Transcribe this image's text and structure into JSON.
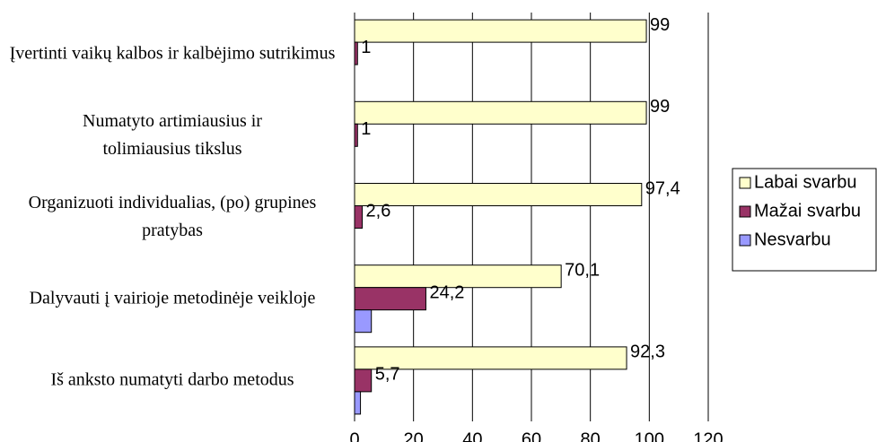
{
  "chart_data": {
    "type": "bar",
    "orientation": "horizontal",
    "categories": [
      "Įvertinti vaikų kalbos ir kalbėjimo sutrikimus",
      "Numatyto artimiausius ir tolimiausius tikslus",
      "Organizuoti individualias, (po) grupines pratybas",
      "Dalyvauti į vairioje metodinėje veikloje",
      "Iš anksto numatyti darbo metodus"
    ],
    "series": [
      {
        "name": "Labai svarbu",
        "color": "#ffffcc",
        "values": [
          99,
          99,
          97.4,
          70.1,
          92.3
        ],
        "value_labels": [
          "99",
          "99",
          "97,4",
          "70,1",
          "92,3"
        ]
      },
      {
        "name": "Mažai svarbu",
        "color": "#993366",
        "values": [
          1,
          1,
          2.6,
          24.2,
          5.7
        ],
        "value_labels": [
          "1",
          "1",
          "2,6",
          "24,2",
          "5,7"
        ]
      },
      {
        "name": "Nesvarbu",
        "color": "#9999ff",
        "values": [
          0,
          0,
          0,
          5.7,
          2
        ]
      }
    ],
    "xlim": [
      0,
      120
    ],
    "xticks": [
      0,
      20,
      40,
      60,
      80,
      100,
      120
    ],
    "grid": true,
    "legend": "right"
  }
}
